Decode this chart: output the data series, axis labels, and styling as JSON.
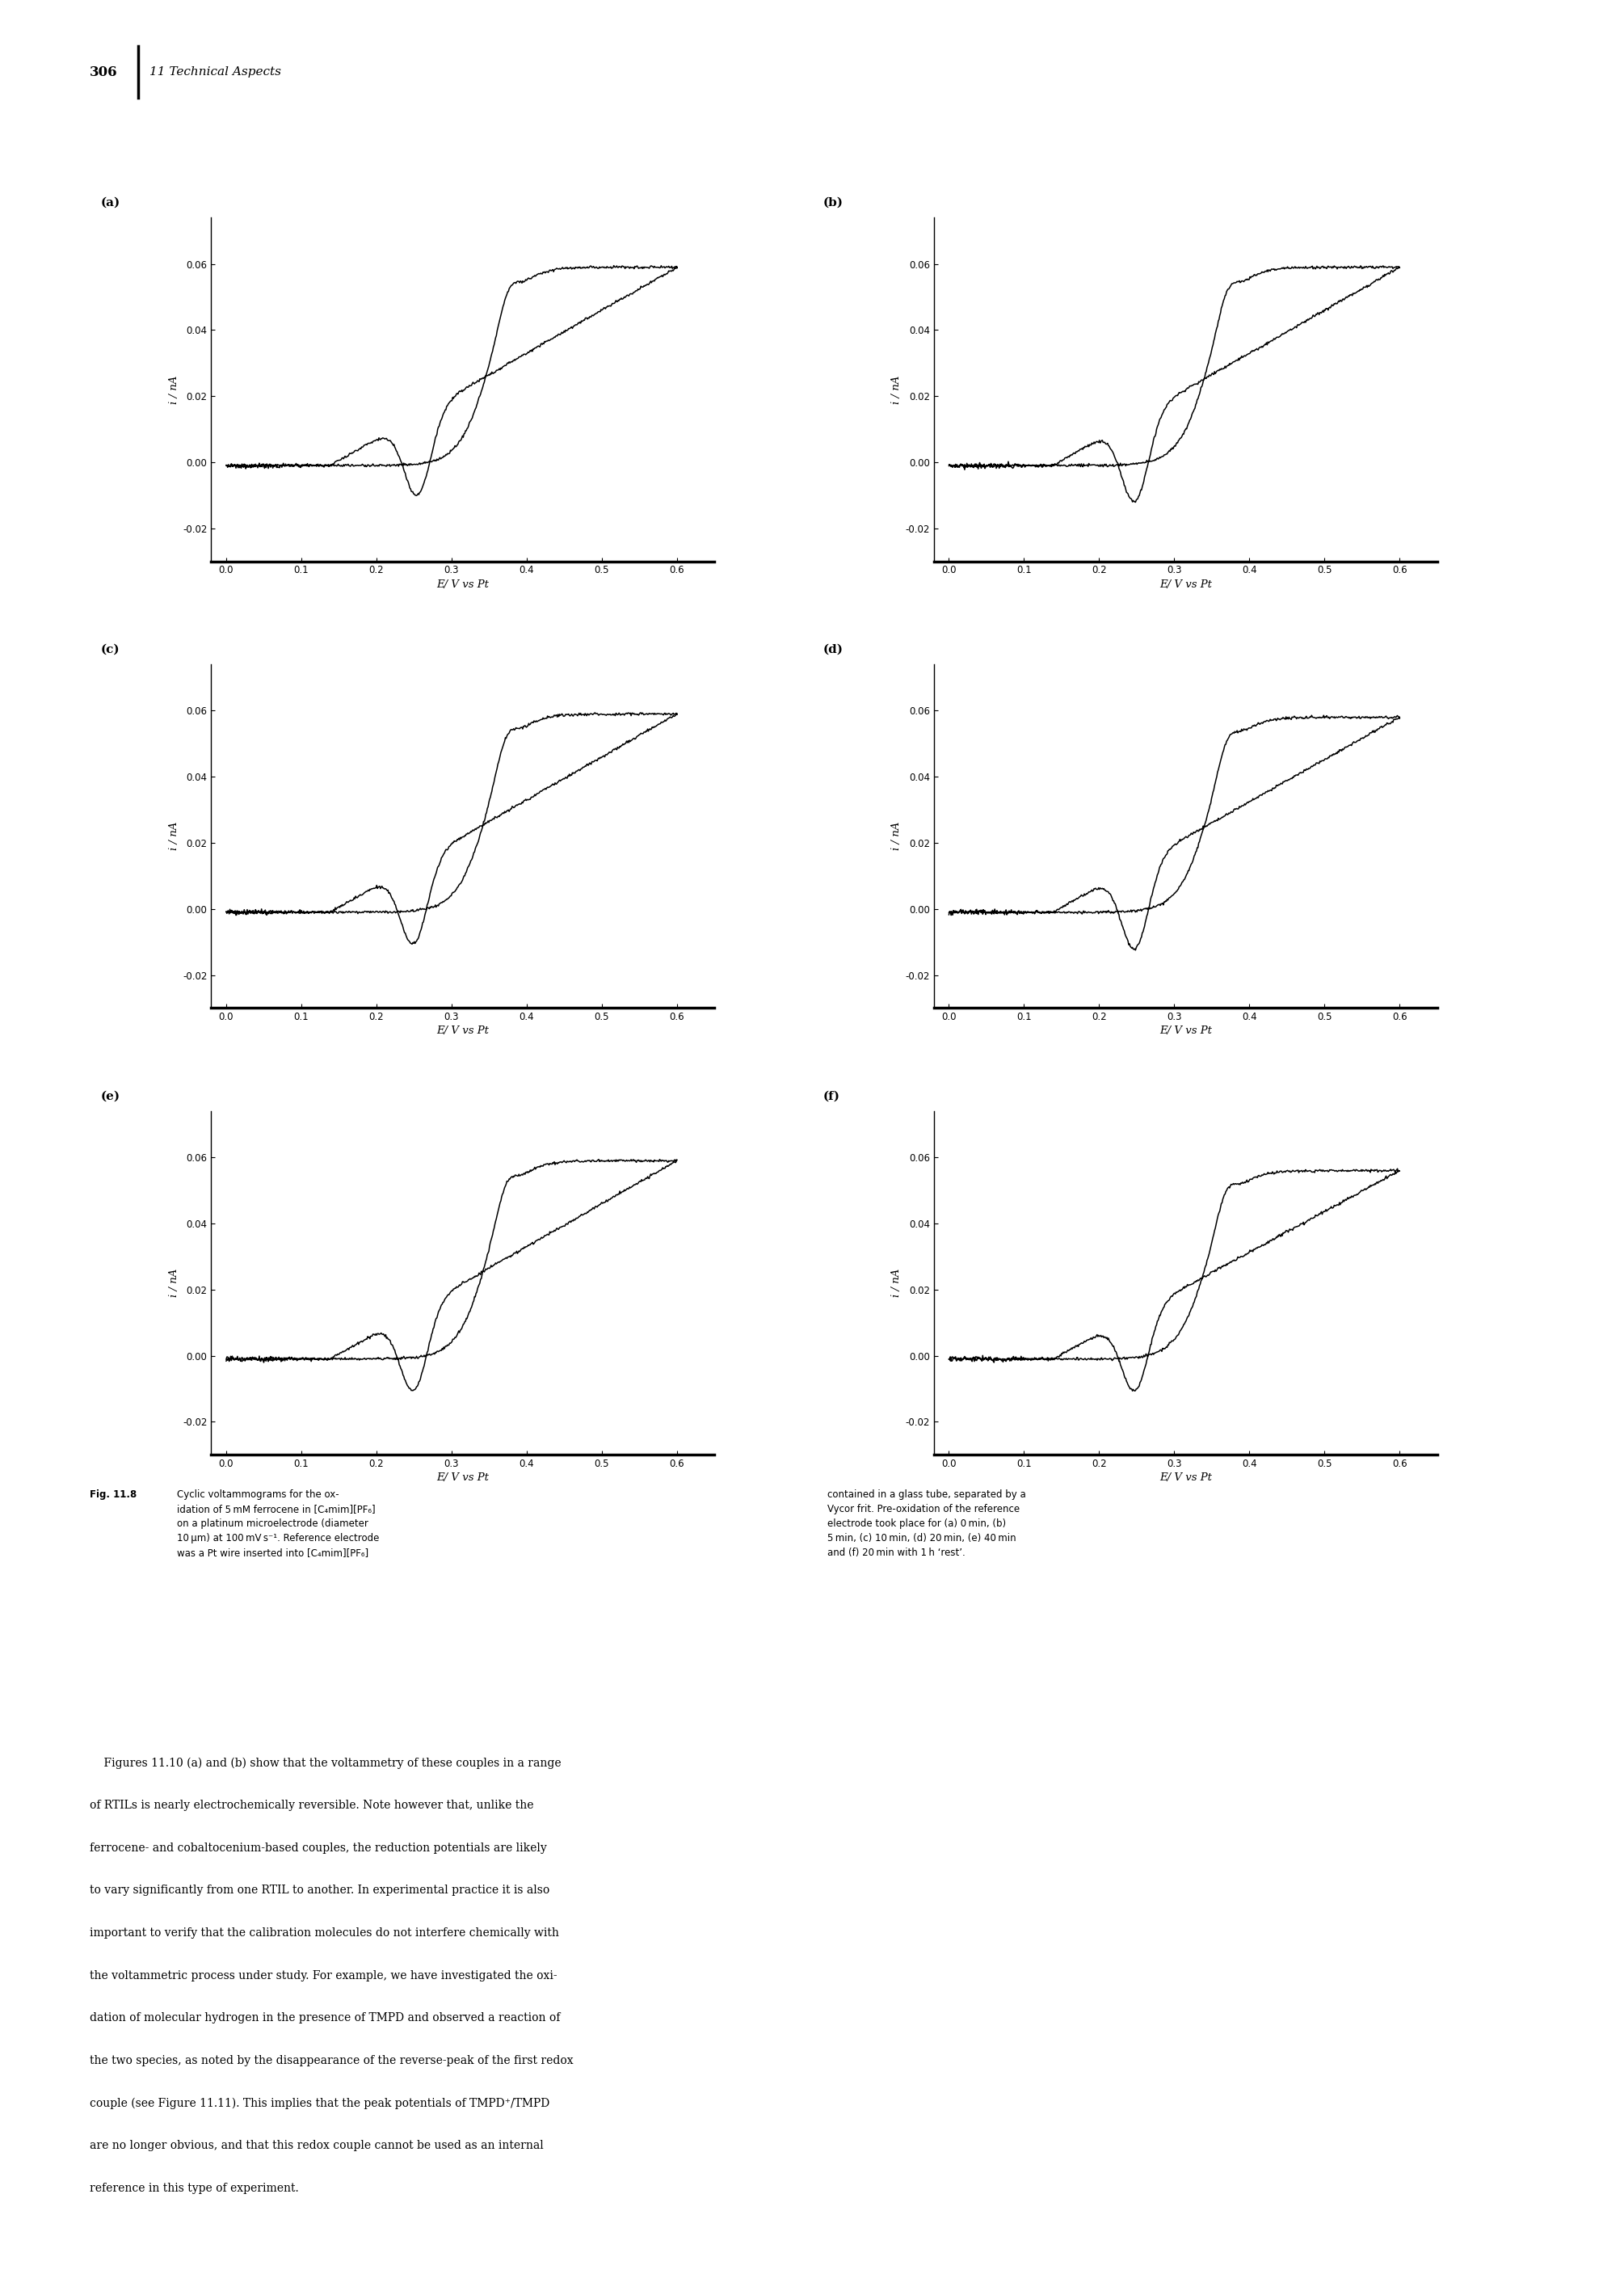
{
  "page_number": "306",
  "chapter_header": "11 Technical Aspects",
  "figure_label": "Fig. 11.8",
  "subplot_labels": [
    "(a)",
    "(b)",
    "(c)",
    "(d)",
    "(e)",
    "(f)"
  ],
  "xtick_vals": [
    0.0,
    0.1,
    0.2,
    0.3,
    0.4,
    0.5,
    0.6
  ],
  "xtick_labels": [
    "0.0",
    "0.1",
    "0.2",
    "0.3",
    "0.4",
    "0.5",
    "0.6"
  ],
  "ytick_vals": [
    -0.02,
    0.0,
    0.02,
    0.04,
    0.06
  ],
  "ytick_labels": [
    "-0.02",
    "0.00",
    "0.02",
    "0.04",
    "0.06"
  ],
  "xlabel": "E/ V vs Pt",
  "ylabel": "i / nA",
  "xlim": [
    -0.02,
    0.65
  ],
  "ylim": [
    -0.03,
    0.074
  ],
  "cap_fig_label": "Fig. 11.8",
  "cap_left_text": "Cyclic voltammograms for the ox-\nidation of 5 mM ferrocene in [C4mim][PF6]\non a platinum microelectrode (diameter\n10 μm) at 100 mV s−1. Reference electrode\nwas a Pt wire inserted into [C4mim][PF6]",
  "cap_right_text": "contained in a glass tube, separated by a\nVycor frit. Pre-oxidation of the reference\nelectrode took place for (a) 0 min, (b)\n5 min, (c) 10 min, (d) 20 min, (e) 40 min\nand (f) 20 min with 1 h ‘rest’.",
  "body_paragraph": "    Figures 11.10 (a) and (b) show that the voltammetry of these couples in a range of RTILs is nearly electrochemically reversible. Note however that, unlike the ferrocene- and cobaltocenium-based couples, the reduction potentials are likely to vary significantly from one RTIL to another. In experimental practice it is also important to verify that the calibration molecules do not interfere chemically with the voltammetric process under study. For example, we have investigated the oxi-dation of molecular hydrogen in the presence of TMPD and observed a reaction of the two species, as noted by the disappearance of the reverse-peak of the first redox couple (see Figure 11.11). This implies that the peak potentials of TMPD⁺/TMPD are no longer obvious, and that this redox couple cannot be used as an internal reference in this type of experiment.",
  "line_color": "#000000",
  "bg_color": "#ffffff"
}
